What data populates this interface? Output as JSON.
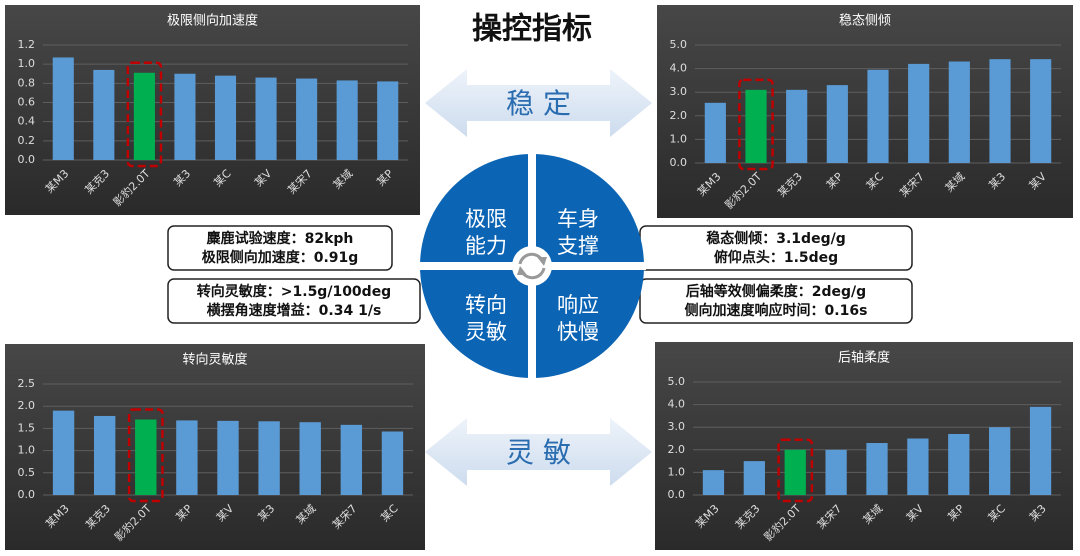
{
  "title": "操控指标",
  "arrows": [
    "稳 定",
    "灵 敏"
  ],
  "quadrants": [
    [
      "极限",
      "能力"
    ],
    [
      "车身",
      "支撑"
    ],
    [
      "转向",
      "灵敏"
    ],
    [
      "响应",
      "快慢"
    ]
  ],
  "metrics": [
    [
      "麋鹿试验速度：82kph",
      "极限侧向加速度：0.91g"
    ],
    [
      "稳态侧倾：3.1deg/g",
      "俯仰点头：1.5deg"
    ],
    [
      "转向灵敏度：>1.5g/100deg",
      "横摆角速度增益：0.34 1/s"
    ],
    [
      "后轴等效侧偏柔度：2deg/g",
      "侧向加速度响应时间：0.16s"
    ]
  ],
  "chart_data": [
    {
      "type": "bar",
      "title": "极限侧向加速度",
      "categories": [
        "某M3",
        "某克3",
        "影豹2.0T",
        "某3",
        "某C",
        "某V",
        "某宋7",
        "某域",
        "某P"
      ],
      "values": [
        1.07,
        0.94,
        0.91,
        0.9,
        0.88,
        0.86,
        0.85,
        0.83,
        0.82
      ],
      "colors": [
        "#5b9bd5",
        "#5b9bd5",
        "#00b050",
        "#5b9bd5",
        "#5b9bd5",
        "#5b9bd5",
        "#5b9bd5",
        "#5b9bd5",
        "#5b9bd5"
      ],
      "ylim": [
        0,
        1.2
      ],
      "yticks": [
        {
          "value": 0,
          "label": "0.0"
        },
        0.2,
        0.4,
        0.6,
        0.8,
        {
          "value": 1,
          "label": "1.0"
        },
        1.2
      ],
      "grid": true
    },
    {
      "type": "bar",
      "title": "稳态侧倾",
      "categories": [
        "某M3",
        "影豹2.0T",
        "某克3",
        "某P",
        "某C",
        "某宋7",
        "某域",
        "某3",
        "某V"
      ],
      "values": [
        2.55,
        3.1,
        3.1,
        3.3,
        3.95,
        4.2,
        4.3,
        4.4,
        4.4
      ],
      "colors": [
        "#5b9bd5",
        "#00b050",
        "#5b9bd5",
        "#5b9bd5",
        "#5b9bd5",
        "#5b9bd5",
        "#5b9bd5",
        "#5b9bd5",
        "#5b9bd5"
      ],
      "ylim": [
        0,
        5
      ],
      "yticks": [
        {
          "value": 0,
          "label": "0.0"
        },
        {
          "value": 1,
          "label": "1.0"
        },
        {
          "value": 2,
          "label": "2.0"
        },
        {
          "value": 3,
          "label": "3.0"
        },
        {
          "value": 4,
          "label": "4.0"
        },
        {
          "value": 5,
          "label": "5.0"
        }
      ],
      "grid": true
    },
    {
      "type": "bar",
      "title": "转向灵敏度",
      "categories": [
        "某M3",
        "某克3",
        "影豹2.0T",
        "某P",
        "某V",
        "某3",
        "某域",
        "某宋7",
        "某C"
      ],
      "values": [
        1.9,
        1.78,
        1.7,
        1.68,
        1.67,
        1.66,
        1.64,
        1.58,
        1.43
      ],
      "colors": [
        "#5b9bd5",
        "#5b9bd5",
        "#00b050",
        "#5b9bd5",
        "#5b9bd5",
        "#5b9bd5",
        "#5b9bd5",
        "#5b9bd5",
        "#5b9bd5"
      ],
      "ylim": [
        0,
        2.5
      ],
      "yticks": [
        {
          "value": 0,
          "label": "0.0"
        },
        0.5,
        {
          "value": 1,
          "label": "1.0"
        },
        1.5,
        {
          "value": 2,
          "label": "2.0"
        },
        2.5
      ],
      "grid": true
    },
    {
      "type": "bar",
      "title": "后轴柔度",
      "categories": [
        "某M3",
        "某克3",
        "影豹2.0T",
        "某宋7",
        "某域",
        "某V",
        "某P",
        "某C",
        "某3"
      ],
      "values": [
        1.1,
        1.5,
        2.0,
        2.0,
        2.3,
        2.5,
        2.7,
        3.0,
        3.9
      ],
      "colors": [
        "#5b9bd5",
        "#5b9bd5",
        "#00b050",
        "#5b9bd5",
        "#5b9bd5",
        "#5b9bd5",
        "#5b9bd5",
        "#5b9bd5",
        "#5b9bd5"
      ],
      "ylim": [
        0,
        5
      ],
      "yticks": [
        {
          "value": 0,
          "label": "0.0"
        },
        {
          "value": 1,
          "label": "1.0"
        },
        {
          "value": 2,
          "label": "2.0"
        },
        {
          "value": 3,
          "label": "3.0"
        },
        {
          "value": 4,
          "label": "4.0"
        },
        {
          "value": 5,
          "label": "5.0"
        }
      ],
      "grid": true
    }
  ]
}
